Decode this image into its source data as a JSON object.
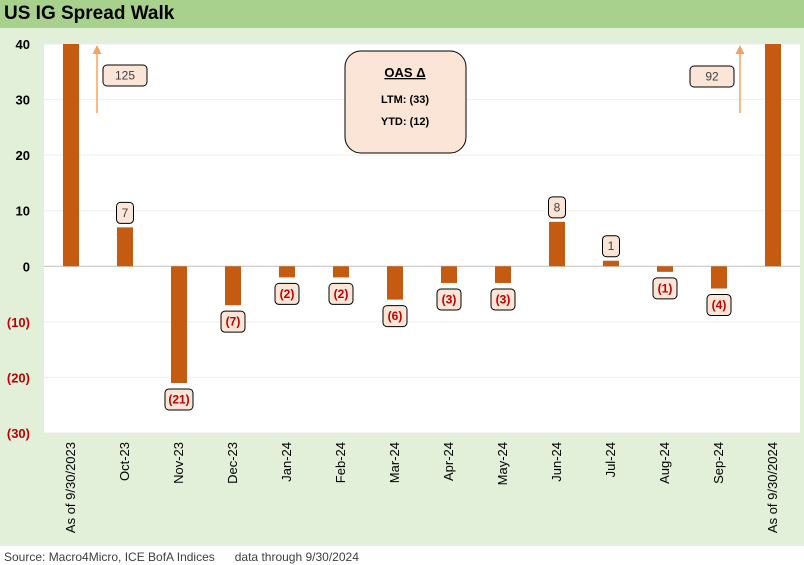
{
  "title": "US IG Spread Walk",
  "source": "Source: Macro4Micro, ICE BofA Indices      data through 9/30/2024",
  "colors": {
    "title_bar": "#a9d18e",
    "background": "#e2efd9",
    "plot_area": "#ffffff",
    "bar": "#c55a11",
    "label_fill": "#fbe5d6",
    "negative_text": "#c00000",
    "arrow": "#f4a261"
  },
  "chart_data": {
    "type": "bar",
    "categories": [
      "As of 9/30/2023",
      "Oct-23",
      "Nov-23",
      "Dec-23",
      "Jan-24",
      "Feb-24",
      "Mar-24",
      "Apr-24",
      "May-24",
      "Jun-24",
      "Jul-24",
      "Aug-24",
      "Sep-24",
      "As of 9/30/2024"
    ],
    "values": [
      125,
      7,
      -21,
      -7,
      -2,
      -2,
      -6,
      -3,
      -3,
      8,
      1,
      -1,
      -4,
      92
    ],
    "data_labels": [
      "125",
      "7",
      "(21)",
      "(7)",
      "(2)",
      "(2)",
      "(6)",
      "(3)",
      "(3)",
      "8",
      "1",
      "(1)",
      "(4)",
      "92"
    ],
    "ylim": [
      -30,
      40
    ],
    "yticks": [
      40,
      30,
      20,
      10,
      0,
      -10,
      -20,
      -30
    ],
    "ytick_labels": [
      "40",
      "30",
      "20",
      "10",
      "0",
      "(10)",
      "(20)",
      "(30)"
    ],
    "title": "US IG Spread Walk",
    "xlabel": "",
    "ylabel": "",
    "grid": true
  },
  "callout": {
    "title": "OAS Δ",
    "ltm": "LTM: (33)",
    "ytd": "YTD: (12)"
  }
}
